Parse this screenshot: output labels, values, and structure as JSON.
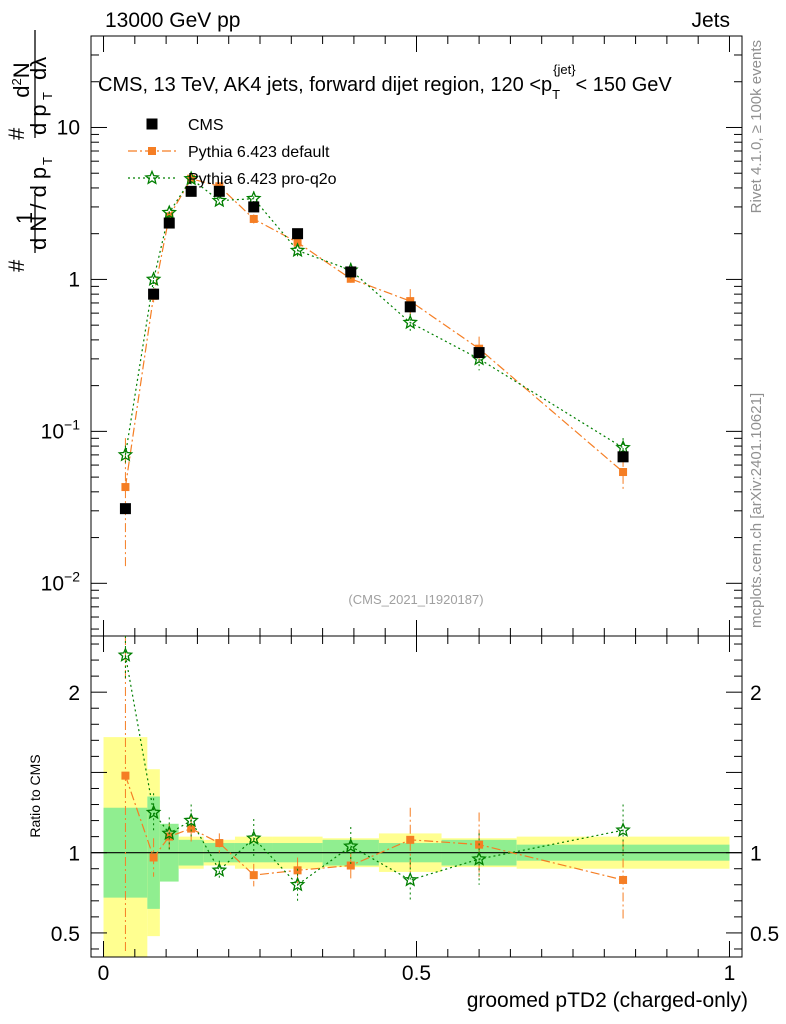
{
  "header": {
    "left": "13000 GeV pp",
    "right": "Jets"
  },
  "side_labels": {
    "rivet": "Rivet 4.1.0, ≥ 100k events",
    "mcplots": "mcplots.cern.ch [arXiv:2401.10621]"
  },
  "watermark": "(CMS_2021_I1920187)",
  "chart_data": {
    "type": "scatter",
    "title": "CMS, 13 TeV, AK4 jets, forward dijet region, 120 <p_T^{jet}< 150 GeV",
    "title_parts": {
      "main": "CMS, 13 TeV, AK4 jets, forward dijet region, 120 <p",
      "sub": "T",
      "sup": "{jet}",
      "tail": "< 150 GeV"
    },
    "xlabel": "groomed pTD2 (charged-only)",
    "ylabel_main": "1/N dN/dλ",
    "ylabel_ratio": "Ratio to CMS",
    "xlim": [
      -0.02,
      1.02
    ],
    "ylim_main": [
      0.0045,
      40
    ],
    "ylim_ratio": [
      0.35,
      2.35
    ],
    "x_ticks": [
      0,
      0.5,
      1
    ],
    "x_tick_labels": [
      "0",
      "0.5",
      "1"
    ],
    "y_ticks_main": [
      0.01,
      0.1,
      1,
      10
    ],
    "y_ticks_ratio": [
      0.5,
      1,
      2
    ],
    "y_tick_labels_ratio": [
      "0.5",
      "1",
      "2"
    ],
    "edges": [
      0,
      0.07,
      0.09,
      0.12,
      0.16,
      0.21,
      0.27,
      0.35,
      0.44,
      0.54,
      0.66,
      1.0
    ],
    "x": [
      0.035,
      0.08,
      0.105,
      0.14,
      0.185,
      0.24,
      0.31,
      0.395,
      0.49,
      0.6,
      0.83
    ],
    "series": [
      {
        "name": "CMS",
        "color": "#000000",
        "marker": "square",
        "values": [
          0.031,
          0.8,
          2.35,
          3.8,
          3.8,
          3.0,
          2.0,
          1.12,
          0.66,
          0.33,
          0.068
        ],
        "ratio_stat": [
          0.28,
          0.35,
          0.18,
          0.08,
          0.06,
          0.06,
          0.06,
          0.08,
          0.06,
          0.08,
          0.05
        ],
        "ratio_total": [
          0.72,
          0.52,
          0.1,
          0.1,
          0.08,
          0.1,
          0.1,
          0.09,
          0.12,
          0.09,
          0.1
        ]
      },
      {
        "name": "Pythia 6.423 default",
        "color": "#f57e24",
        "marker": "square-small",
        "values": [
          0.043,
          0.78,
          2.6,
          4.6,
          4.1,
          2.5,
          1.75,
          1.01,
          0.72,
          0.35,
          0.054
        ],
        "ratio": [
          1.48,
          0.97,
          1.1,
          1.15,
          1.06,
          0.86,
          0.89,
          0.92,
          1.08,
          1.05,
          0.83
        ],
        "ratio_err": [
          1.1,
          0.12,
          0.08,
          0.08,
          0.06,
          0.07,
          0.08,
          0.08,
          0.2,
          0.2,
          0.24
        ]
      },
      {
        "name": "Pythia 6.423 pro-q2o",
        "color": "#007f00",
        "marker": "star",
        "values": [
          0.07,
          1.0,
          2.75,
          4.6,
          3.3,
          3.4,
          1.55,
          1.15,
          0.52,
          0.3,
          0.078
        ],
        "ratio": [
          2.23,
          1.25,
          1.12,
          1.2,
          0.89,
          1.09,
          0.8,
          1.04,
          0.83,
          0.96,
          1.14
        ],
        "ratio_err": [
          0.15,
          0.12,
          0.1,
          0.1,
          0.06,
          0.12,
          0.1,
          0.12,
          0.14,
          0.16,
          0.16
        ]
      }
    ],
    "band_colors": {
      "stat": "#90ee90",
      "total": "#ffff90"
    }
  }
}
